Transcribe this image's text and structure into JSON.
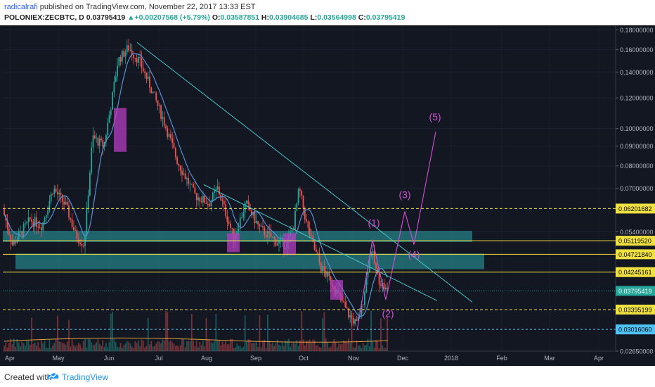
{
  "header": {
    "author": "radicalrafi",
    "published_text": "published on TradingView.com, November 22, 2017 13:33 EST",
    "symbol": "POLONIEX:ZECBTC, D",
    "close_value": "0.03795419",
    "change": "▲+0.00207568 (+5.79%)",
    "open_label": "O:",
    "open_value": "0.03587851",
    "high_label": "H:",
    "high_value": "0.03904685",
    "low_label": "L:",
    "low_value": "0.03564998",
    "close_label": "C:",
    "close_value2": "0.03795419"
  },
  "footer": {
    "created_with": "Created with",
    "brand": "TradingView"
  },
  "colors": {
    "background": "#131722",
    "up": "#26a69a",
    "down": "#ef5350",
    "ma": "#5b8fd1",
    "trendline": "#44c6c9",
    "zone": "#2ba5a8",
    "annotation": "#d64fd6",
    "yellow_level": "#f0e040"
  },
  "chart_data": {
    "type": "candlestick",
    "symbol": "POLONIEX:ZECBTC",
    "interval": "D",
    "y_scale": "log",
    "ylim": [
      0.0265,
      0.185
    ],
    "y_ticks": [
      "0.18000000",
      "0.16000000",
      "0.14000000",
      "0.12000000",
      "0.10000000",
      "0.09000000",
      "0.08000000",
      "0.07000000",
      "0.05400000",
      "0.02650000"
    ],
    "x_labels": [
      "Apr",
      "May",
      "Jun",
      "Jul",
      "Aug",
      "Sep",
      "Oct",
      "Nov",
      "Dec",
      "2018",
      "Feb",
      "Mar",
      "Apr"
    ],
    "price_labels": [
      {
        "value": "0.06201682",
        "style": "dashed-yellow"
      },
      {
        "value": "0.05119520",
        "style": "solid-yellow"
      },
      {
        "value": "0.04721840",
        "style": "solid-yellow"
      },
      {
        "value": "0.04245161",
        "style": "solid-yellow"
      },
      {
        "value": "0.03795419",
        "style": "current"
      },
      {
        "value": "0.03395199",
        "style": "dashed-yellow"
      },
      {
        "value": "0.03016060",
        "style": "dashed-cyan"
      }
    ],
    "waves": [
      "(1)",
      "(2)",
      "(3)",
      "(4)",
      "(5)"
    ],
    "zones": [
      {
        "from": 0.0508,
        "to": 0.0543
      },
      {
        "from": 0.0432,
        "to": 0.0474
      }
    ]
  }
}
